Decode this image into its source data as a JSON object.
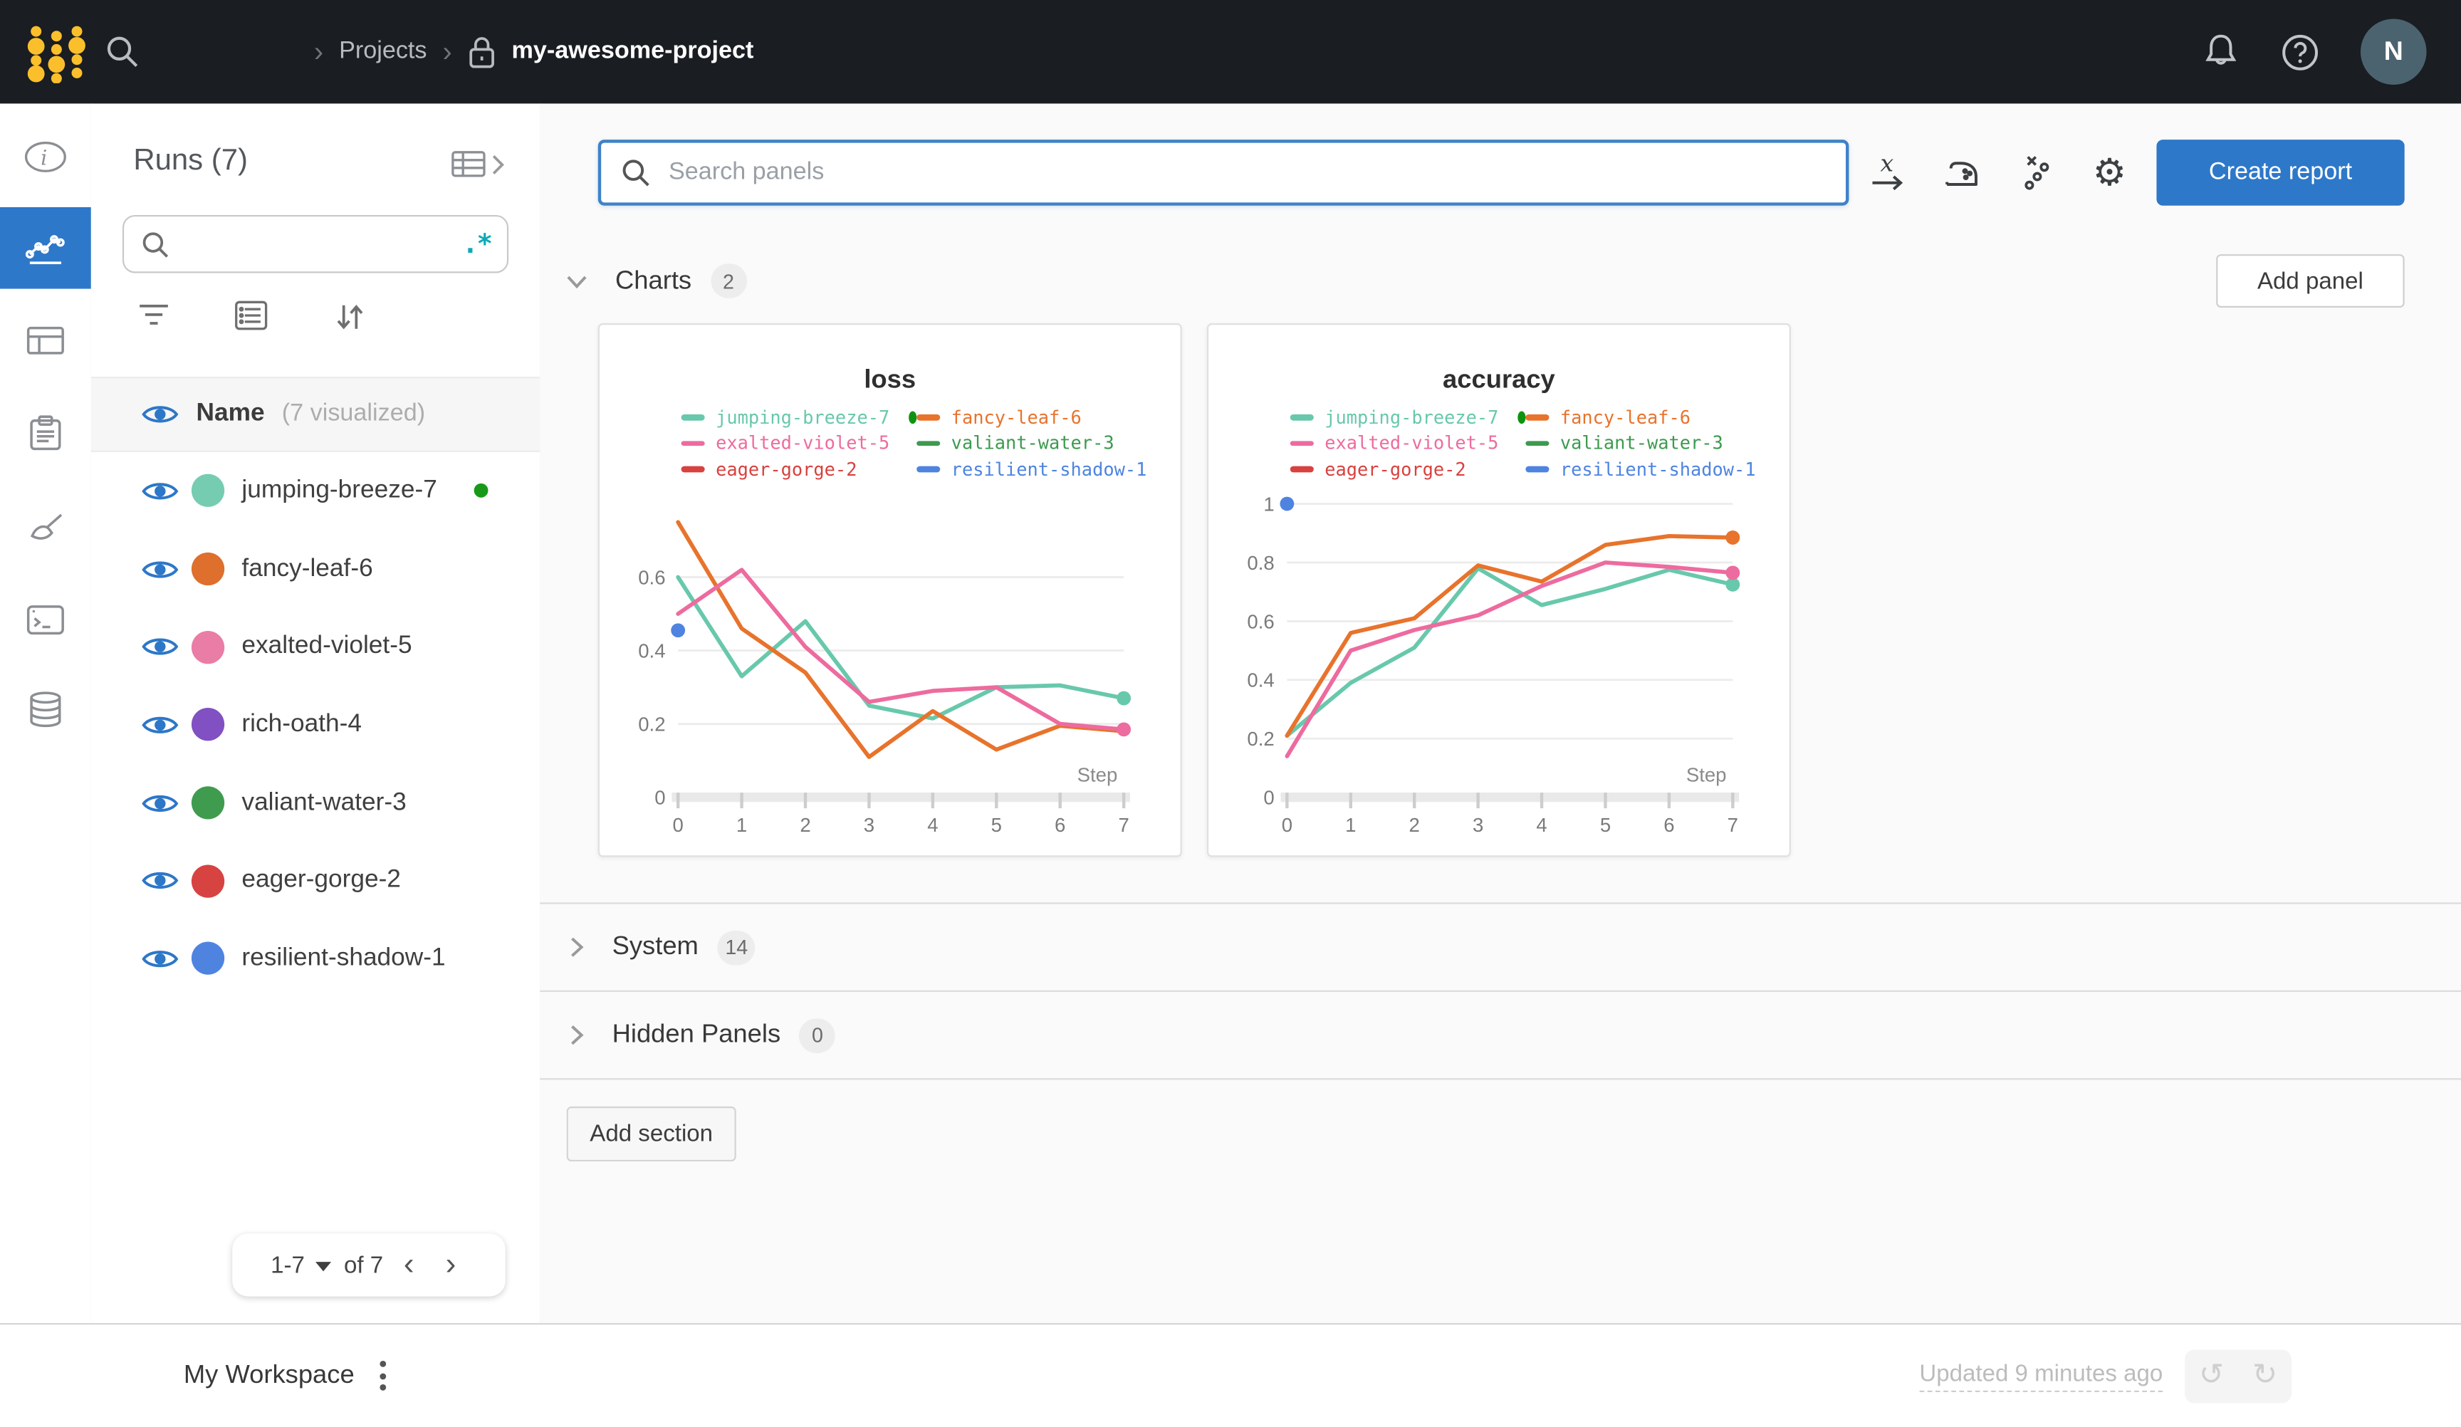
{
  "colors": {
    "accent_blue": "#2e78c9",
    "topbar_bg": "#1a1d21",
    "logo_yellow": "#fcbf2c",
    "regex_teal": "#0fa9b8",
    "running_green": "#189a18"
  },
  "topbar": {
    "breadcrumb_separator": "›",
    "projects_link": "Projects",
    "project_name": "my-awesome-project",
    "avatar_initial": "N"
  },
  "runs_panel": {
    "title": "Runs (7)",
    "regex_glyph": ".*",
    "header": {
      "name_label": "Name",
      "visualized_label": "(7 visualized)"
    },
    "runs": [
      {
        "name": "jumping-breeze-7",
        "color": "#76ccb1",
        "running": true
      },
      {
        "name": "fancy-leaf-6",
        "color": "#de6f2d",
        "running": false
      },
      {
        "name": "exalted-violet-5",
        "color": "#ea7da5",
        "running": false
      },
      {
        "name": "rich-oath-4",
        "color": "#8150c2",
        "running": false
      },
      {
        "name": "valiant-water-3",
        "color": "#3f9c4f",
        "running": false
      },
      {
        "name": "eager-gorge-2",
        "color": "#d64341",
        "running": false
      },
      {
        "name": "resilient-shadow-1",
        "color": "#4e84e0",
        "running": false
      }
    ],
    "pagination": {
      "range": "1-7",
      "of": "of 7",
      "prev_glyph": "‹",
      "next_glyph": "›"
    }
  },
  "main": {
    "search": {
      "placeholder": "Search panels"
    },
    "toolbar": {
      "gear_glyph": "⚙"
    },
    "create_report_label": "Create report",
    "sections": {
      "charts": {
        "label": "Charts",
        "count": "2"
      },
      "system": {
        "label": "System",
        "count": "14"
      },
      "hidden": {
        "label": "Hidden Panels",
        "count": "0"
      }
    },
    "add_panel_label": "Add panel",
    "add_section_label": "Add section"
  },
  "footer": {
    "workspace_label": "My Workspace",
    "updated_label": "Updated 9 minutes ago",
    "undo_glyph": "↺",
    "redo_glyph": "↻"
  },
  "chart_data": [
    {
      "type": "line",
      "title": "loss",
      "xlabel": "Step",
      "x": [
        0,
        1,
        2,
        3,
        4,
        5,
        6,
        7
      ],
      "ylim": [
        0,
        0.8
      ],
      "yticks": [
        0,
        0.2,
        0.4,
        0.6
      ],
      "grid": true,
      "legend_position": "top",
      "legend": [
        {
          "name": "jumping-breeze-7",
          "color": "#68c8ac",
          "running": true
        },
        {
          "name": "fancy-leaf-6",
          "color": "#e8732c"
        },
        {
          "name": "exalted-violet-5",
          "color": "#ed6b9e"
        },
        {
          "name": "valiant-water-3",
          "color": "#3d9a4f"
        },
        {
          "name": "eager-gorge-2",
          "color": "#d8413e"
        },
        {
          "name": "resilient-shadow-1",
          "color": "#4e84e0"
        }
      ],
      "series": [
        {
          "name": "jumping-breeze-7",
          "color": "#68c8ac",
          "values": [
            0.6,
            0.33,
            0.48,
            0.25,
            0.215,
            0.3,
            0.305,
            0.27
          ],
          "end_marker": true
        },
        {
          "name": "fancy-leaf-6",
          "color": "#e8732c",
          "values": [
            0.75,
            0.46,
            0.34,
            0.11,
            0.235,
            0.13,
            0.195,
            0.18
          ]
        },
        {
          "name": "exalted-violet-5",
          "color": "#ed6b9e",
          "values": [
            0.5,
            0.62,
            0.41,
            0.26,
            0.29,
            0.3,
            0.2,
            0.185
          ],
          "end_marker": true
        },
        {
          "name": "resilient-shadow-1",
          "color": "#4e84e0",
          "point": {
            "x": 0,
            "y": 0.455
          }
        }
      ]
    },
    {
      "type": "line",
      "title": "accuracy",
      "xlabel": "Step",
      "x": [
        0,
        1,
        2,
        3,
        4,
        5,
        6,
        7
      ],
      "ylim": [
        0,
        1
      ],
      "yticks": [
        0,
        0.2,
        0.4,
        0.6,
        0.8,
        1
      ],
      "grid": true,
      "legend_position": "top",
      "legend": [
        {
          "name": "jumping-breeze-7",
          "color": "#68c8ac",
          "running": true
        },
        {
          "name": "fancy-leaf-6",
          "color": "#e8732c"
        },
        {
          "name": "exalted-violet-5",
          "color": "#ed6b9e"
        },
        {
          "name": "valiant-water-3",
          "color": "#3d9a4f"
        },
        {
          "name": "eager-gorge-2",
          "color": "#d8413e"
        },
        {
          "name": "resilient-shadow-1",
          "color": "#4e84e0"
        }
      ],
      "series": [
        {
          "name": "jumping-breeze-7",
          "color": "#68c8ac",
          "values": [
            0.21,
            0.39,
            0.51,
            0.78,
            0.655,
            0.71,
            0.775,
            0.725
          ],
          "end_marker": true
        },
        {
          "name": "fancy-leaf-6",
          "color": "#e8732c",
          "values": [
            0.21,
            0.56,
            0.61,
            0.79,
            0.735,
            0.86,
            0.89,
            0.885
          ],
          "end_marker": true
        },
        {
          "name": "exalted-violet-5",
          "color": "#ed6b9e",
          "values": [
            0.14,
            0.5,
            0.57,
            0.62,
            0.72,
            0.8,
            0.785,
            0.765
          ],
          "end_marker": true
        },
        {
          "name": "resilient-shadow-1",
          "color": "#4e84e0",
          "point": {
            "x": 0,
            "y": 1.0
          }
        }
      ]
    }
  ]
}
